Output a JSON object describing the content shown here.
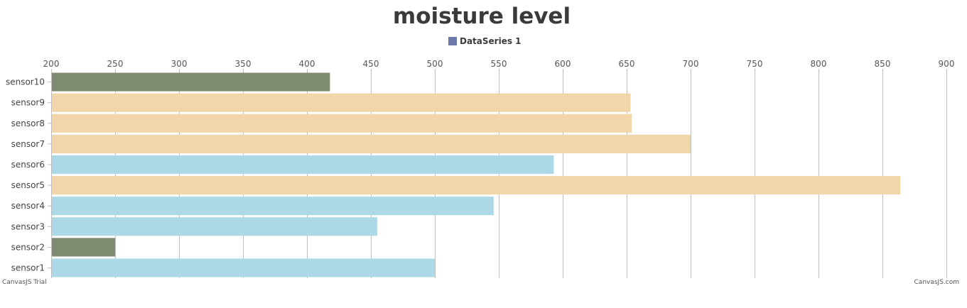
{
  "chart_data": {
    "type": "bar",
    "orientation": "horizontal",
    "title": "moisture level",
    "legend": {
      "placement": "top-center",
      "entries": [
        {
          "name": "DataSeries 1",
          "color": "#6d78ad"
        }
      ]
    },
    "xlim": [
      200,
      900
    ],
    "x_ticks": [
      200,
      250,
      300,
      350,
      400,
      450,
      500,
      550,
      600,
      650,
      700,
      750,
      800,
      850,
      900
    ],
    "grid": true,
    "categories": [
      "sensor1",
      "sensor2",
      "sensor3",
      "sensor4",
      "sensor5",
      "sensor6",
      "sensor7",
      "sensor8",
      "sensor9",
      "sensor10"
    ],
    "series": [
      {
        "name": "DataSeries 1",
        "values": [
          500,
          250,
          455,
          546,
          864,
          593,
          700,
          654,
          653,
          418
        ],
        "colors": [
          "#add8e6",
          "#7f8c72",
          "#add8e6",
          "#add8e6",
          "#f0d6a8",
          "#add8e6",
          "#f0d6a8",
          "#f0d6a8",
          "#f0d6a8",
          "#7f8c72"
        ]
      }
    ],
    "credits": {
      "left": "CanvasJS Trial",
      "right": "CanvasJS.com"
    }
  }
}
